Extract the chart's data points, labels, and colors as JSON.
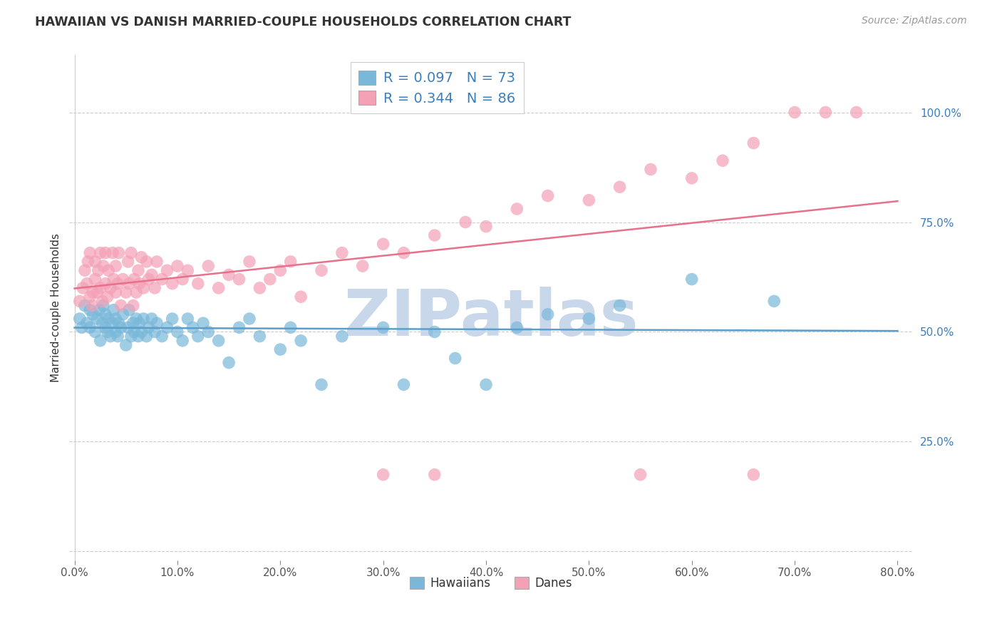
{
  "title": "HAWAIIAN VS DANISH MARRIED-COUPLE HOUSEHOLDS CORRELATION CHART",
  "source": "Source: ZipAtlas.com",
  "ylabel": "Married-couple Households",
  "xlabel_ticks": [
    "0.0%",
    "10.0%",
    "20.0%",
    "30.0%",
    "40.0%",
    "50.0%",
    "60.0%",
    "70.0%",
    "80.0%"
  ],
  "ylabel_ticks_right": [
    "100.0%",
    "75.0%",
    "50.0%",
    "25.0%"
  ],
  "xlim": [
    0.0,
    0.8
  ],
  "ylim": [
    0.0,
    1.1
  ],
  "hawaiians_R": 0.097,
  "hawaiians_N": 73,
  "danes_R": 0.344,
  "danes_N": 86,
  "blue_color": "#7ab8d9",
  "pink_color": "#f4a0b5",
  "blue_line_color": "#5b9ec9",
  "pink_line_color": "#e8708a",
  "text_blue": "#3a7fc1",
  "legend_label_blue": "Hawaiians",
  "legend_label_pink": "Danes",
  "watermark": "ZIPatlas",
  "watermark_color": "#c8d8ea",
  "hawaiians_x": [
    0.005,
    0.007,
    0.01,
    0.012,
    0.015,
    0.015,
    0.018,
    0.02,
    0.022,
    0.024,
    0.025,
    0.027,
    0.028,
    0.03,
    0.03,
    0.032,
    0.033,
    0.035,
    0.037,
    0.038,
    0.04,
    0.04,
    0.042,
    0.043,
    0.045,
    0.047,
    0.05,
    0.052,
    0.053,
    0.055,
    0.057,
    0.058,
    0.06,
    0.062,
    0.063,
    0.065,
    0.067,
    0.07,
    0.072,
    0.075,
    0.078,
    0.08,
    0.085,
    0.09,
    0.095,
    0.1,
    0.105,
    0.11,
    0.115,
    0.12,
    0.125,
    0.13,
    0.14,
    0.15,
    0.16,
    0.17,
    0.18,
    0.2,
    0.21,
    0.22,
    0.24,
    0.26,
    0.3,
    0.32,
    0.35,
    0.37,
    0.4,
    0.43,
    0.46,
    0.5,
    0.53,
    0.6,
    0.68
  ],
  "hawaiians_y": [
    0.53,
    0.51,
    0.56,
    0.52,
    0.55,
    0.51,
    0.54,
    0.5,
    0.53,
    0.55,
    0.48,
    0.52,
    0.56,
    0.51,
    0.54,
    0.5,
    0.53,
    0.49,
    0.52,
    0.55,
    0.5,
    0.53,
    0.49,
    0.52,
    0.51,
    0.54,
    0.47,
    0.51,
    0.55,
    0.49,
    0.52,
    0.5,
    0.53,
    0.49,
    0.52,
    0.5,
    0.53,
    0.49,
    0.51,
    0.53,
    0.5,
    0.52,
    0.49,
    0.51,
    0.53,
    0.5,
    0.48,
    0.53,
    0.51,
    0.49,
    0.52,
    0.5,
    0.48,
    0.43,
    0.51,
    0.53,
    0.49,
    0.46,
    0.51,
    0.48,
    0.38,
    0.49,
    0.51,
    0.38,
    0.5,
    0.44,
    0.38,
    0.51,
    0.54,
    0.53,
    0.56,
    0.62,
    0.57
  ],
  "danes_x": [
    0.005,
    0.008,
    0.01,
    0.012,
    0.013,
    0.015,
    0.015,
    0.017,
    0.018,
    0.02,
    0.02,
    0.022,
    0.023,
    0.025,
    0.025,
    0.027,
    0.028,
    0.03,
    0.03,
    0.032,
    0.033,
    0.035,
    0.037,
    0.038,
    0.04,
    0.04,
    0.042,
    0.043,
    0.045,
    0.047,
    0.05,
    0.052,
    0.053,
    0.055,
    0.057,
    0.058,
    0.06,
    0.062,
    0.063,
    0.065,
    0.067,
    0.07,
    0.072,
    0.075,
    0.078,
    0.08,
    0.085,
    0.09,
    0.095,
    0.1,
    0.105,
    0.11,
    0.12,
    0.13,
    0.14,
    0.15,
    0.16,
    0.17,
    0.18,
    0.19,
    0.2,
    0.21,
    0.22,
    0.24,
    0.26,
    0.28,
    0.3,
    0.32,
    0.35,
    0.38,
    0.4,
    0.43,
    0.46,
    0.5,
    0.53,
    0.56,
    0.6,
    0.63,
    0.66,
    0.7,
    0.73,
    0.76,
    0.3,
    0.35,
    0.55,
    0.66
  ],
  "danes_y": [
    0.57,
    0.6,
    0.64,
    0.61,
    0.66,
    0.58,
    0.68,
    0.56,
    0.59,
    0.62,
    0.66,
    0.59,
    0.64,
    0.6,
    0.68,
    0.57,
    0.65,
    0.61,
    0.68,
    0.58,
    0.64,
    0.6,
    0.68,
    0.62,
    0.59,
    0.65,
    0.61,
    0.68,
    0.56,
    0.62,
    0.59,
    0.66,
    0.61,
    0.68,
    0.56,
    0.62,
    0.59,
    0.64,
    0.61,
    0.67,
    0.6,
    0.66,
    0.62,
    0.63,
    0.6,
    0.66,
    0.62,
    0.64,
    0.61,
    0.65,
    0.62,
    0.64,
    0.61,
    0.65,
    0.6,
    0.63,
    0.62,
    0.66,
    0.6,
    0.62,
    0.64,
    0.66,
    0.58,
    0.64,
    0.68,
    0.65,
    0.7,
    0.68,
    0.72,
    0.75,
    0.74,
    0.78,
    0.81,
    0.8,
    0.83,
    0.87,
    0.85,
    0.89,
    0.93,
    1.0,
    1.0,
    1.0,
    0.175,
    0.175,
    0.175,
    0.175
  ]
}
